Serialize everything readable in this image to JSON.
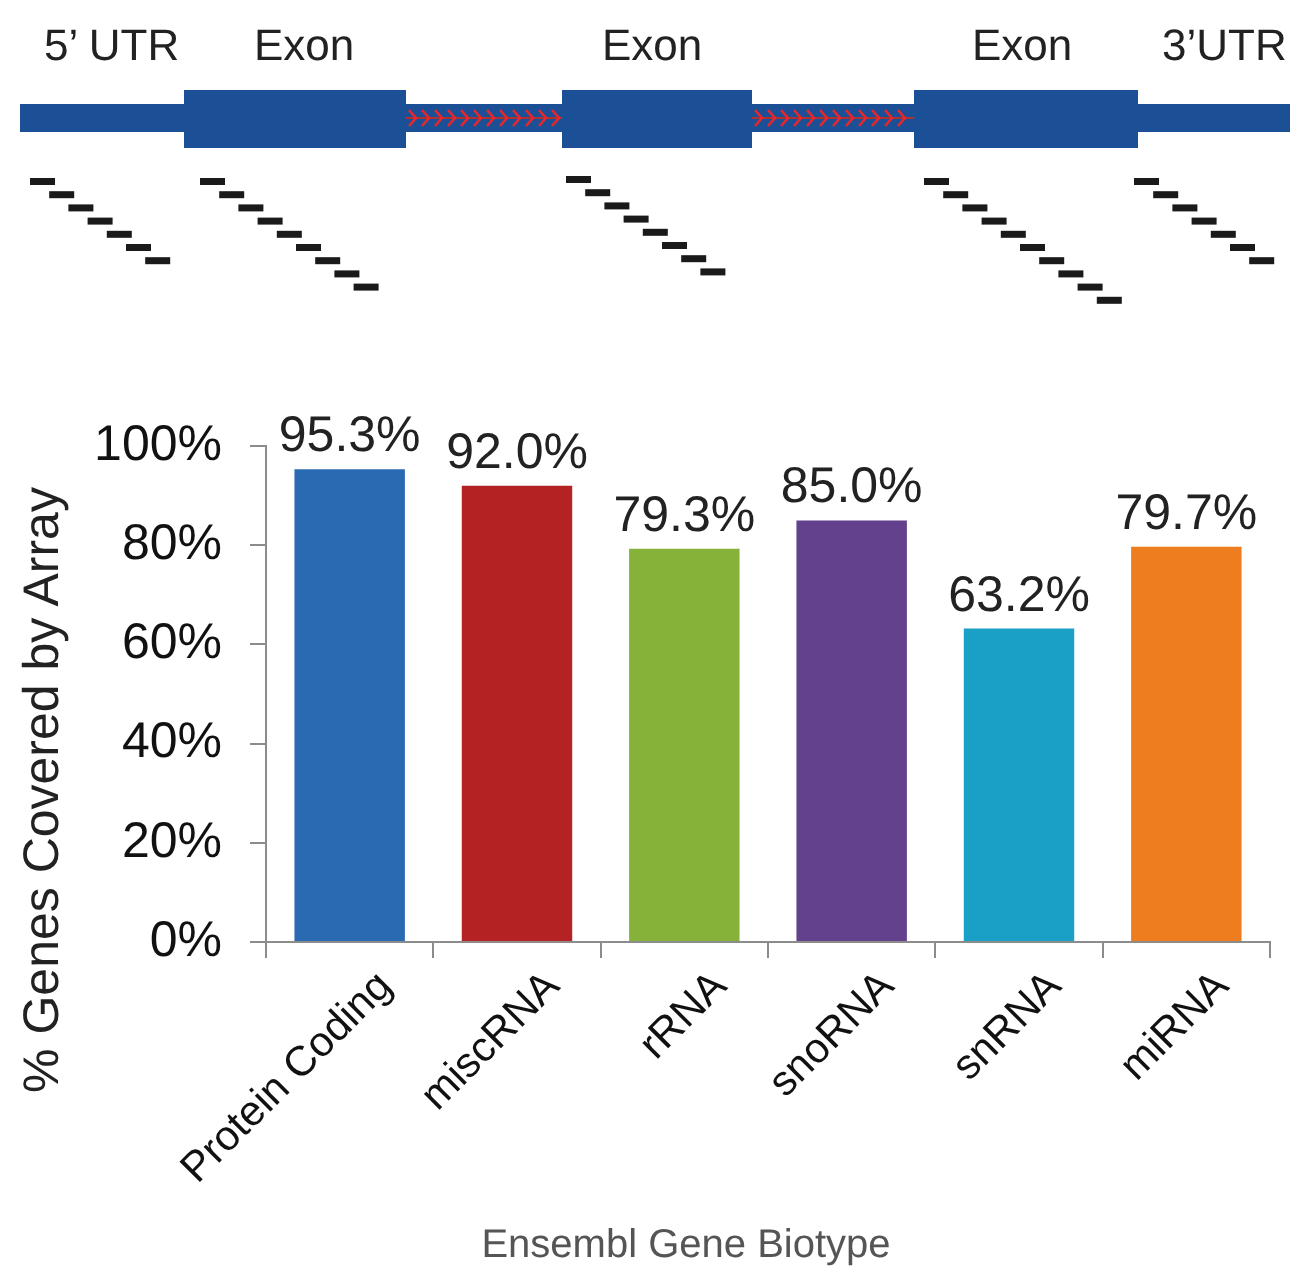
{
  "chart_data": {
    "type": "bar",
    "categories": [
      "Protein Coding",
      "miscRNA",
      "rRNA",
      "snoRNA",
      "snRNA",
      "miRNA"
    ],
    "values": [
      95.3,
      92.0,
      79.3,
      85.0,
      63.2,
      79.7
    ],
    "colors": [
      "#2a6ab3",
      "#b52224",
      "#86b23a",
      "#63418c",
      "#1aa0c6",
      "#ee7d1f"
    ],
    "value_labels": [
      "95.3%",
      "92.0%",
      "79.3%",
      "85.0%",
      "63.2%",
      "79.7%"
    ],
    "xlabel": "Ensembl Gene Biotype",
    "ylabel": "% Genes Covered by Array",
    "ylim": [
      0,
      100
    ],
    "yticks": [
      {
        "value": 0,
        "label": "0%"
      },
      {
        "value": 20,
        "label": "20%"
      },
      {
        "value": 40,
        "label": "40%"
      },
      {
        "value": 60,
        "label": "60%"
      },
      {
        "value": 80,
        "label": "80%"
      },
      {
        "value": 100,
        "label": "100%"
      }
    ],
    "annotations": [
      "5’ UTR",
      "Exon",
      "Exon",
      "Exon",
      "3’UTR"
    ]
  }
}
